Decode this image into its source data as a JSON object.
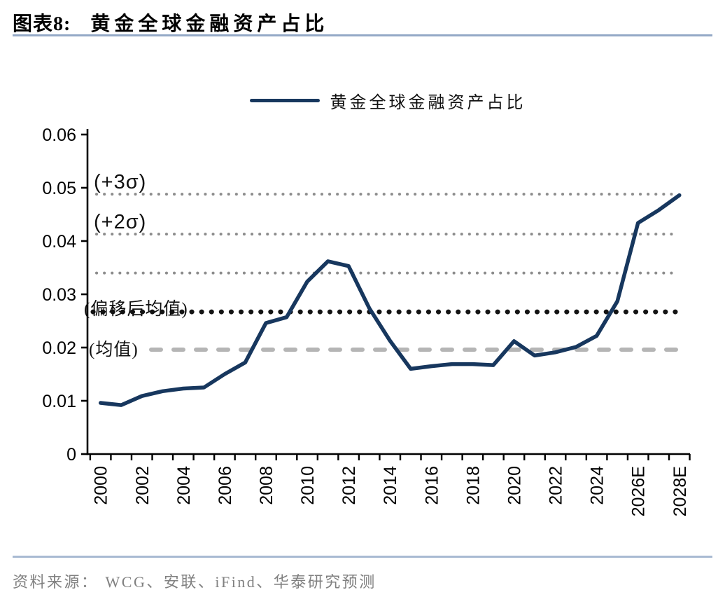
{
  "header": {
    "figure_label": "图表8:",
    "title": "黄金全球金融资产占比"
  },
  "legend": {
    "label": "黄金全球金融资产占比"
  },
  "source": {
    "prefix": "资料来源：",
    "text": "WCG、安联、iFind、华泰研究预测"
  },
  "colors": {
    "series_line": "#17375E",
    "title_rule": "#94A9C7",
    "source_rule": "#A9BAD2",
    "source_text": "#808080",
    "sigma_dotted": "#8C8C8C",
    "shifted_mean_dotted": "#141414",
    "mean_dashed": "#B5B5B5",
    "axis": "#000000"
  },
  "chart_data": {
    "type": "line",
    "title": "黄金全球金融资产占比",
    "x": [
      2000,
      2001,
      2002,
      2003,
      2004,
      2005,
      2006,
      2007,
      2008,
      2009,
      2010,
      2011,
      2012,
      2013,
      2014,
      2015,
      2016,
      2017,
      2018,
      2019,
      2020,
      2021,
      2022,
      2023,
      2024,
      2025,
      2026,
      2027,
      2028
    ],
    "x_tick_labels": [
      "2000",
      "2002",
      "2004",
      "2006",
      "2008",
      "2010",
      "2012",
      "2014",
      "2016",
      "2018",
      "2020",
      "2022",
      "2024",
      "2026E",
      "2028E"
    ],
    "x_tick_every": 2,
    "series": [
      {
        "name": "黄金全球金融资产占比",
        "color": "#17375E",
        "values": [
          0.0096,
          0.0092,
          0.0109,
          0.0118,
          0.0123,
          0.0125,
          0.015,
          0.0172,
          0.0246,
          0.0257,
          0.0324,
          0.0362,
          0.0353,
          0.0274,
          0.0213,
          0.016,
          0.0165,
          0.0169,
          0.0169,
          0.0167,
          0.0212,
          0.0185,
          0.0191,
          0.0201,
          0.0222,
          0.0287,
          0.0434,
          0.0458,
          0.0486
        ]
      }
    ],
    "ylim": [
      0,
      0.06
    ],
    "y_tick_labels": [
      "0",
      "0.01",
      "0.02",
      "0.03",
      "0.04",
      "0.05",
      "0.06"
    ],
    "grid": false,
    "legend_position": "top",
    "reference_lines": [
      {
        "id": "plus-3-sigma",
        "label": "(+3σ)",
        "value": 0.0488,
        "style": "dotted",
        "color": "#8C8C8C"
      },
      {
        "id": "plus-2-sigma",
        "label": "(+2σ)",
        "value": 0.0413,
        "style": "dotted",
        "color": "#8C8C8C"
      },
      {
        "id": "plus-1-sigma",
        "label": "",
        "value": 0.034,
        "style": "dotted",
        "color": "#8C8C8C"
      },
      {
        "id": "shifted-mean",
        "label": "(偏移后均值)",
        "value": 0.0267,
        "style": "dotted-bold",
        "color": "#141414"
      },
      {
        "id": "mean",
        "label": "(均值)",
        "value": 0.0196,
        "style": "dashed",
        "color": "#B5B5B5"
      }
    ]
  }
}
